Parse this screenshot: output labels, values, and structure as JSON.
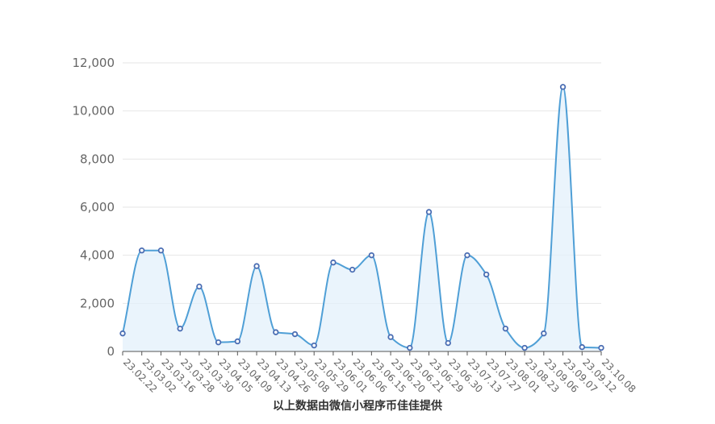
{
  "chart_data": {
    "type": "area",
    "x": [
      "23.02.22",
      "23.03.02",
      "23.03.16",
      "23.03.28",
      "23.03.30",
      "23.04.05",
      "23.04.09",
      "23.04.13",
      "23.04.26",
      "23.05.08",
      "23.05.29",
      "23.06.01",
      "23.06.06",
      "23.06.15",
      "23.06.20",
      "23.06.21",
      "23.06.29",
      "23.06.30",
      "23.07.13",
      "23.07.27",
      "23.08.01",
      "23.08.23",
      "23.09.06",
      "23.09.07",
      "23.09.12",
      "23.10.08"
    ],
    "series": [
      {
        "values": [
          750,
          4200,
          4200,
          950,
          2700,
          380,
          420,
          3550,
          800,
          720,
          250,
          3700,
          3400,
          4000,
          600,
          150,
          5800,
          350,
          4000,
          3200,
          950,
          150,
          750,
          11000,
          180,
          150
        ]
      }
    ],
    "ylim": [
      0,
      12000
    ],
    "yticks": [
      "0",
      "2,000",
      "4,000",
      "6,000",
      "8,000",
      "10,000",
      "12,000"
    ],
    "grid": true,
    "line_color": "#4f9fd6",
    "area_color": "#e3f0fb",
    "marker_stroke": "#4a6db3"
  },
  "footer": {
    "caption": "以上数据由微信小程序币佳佳提供"
  }
}
